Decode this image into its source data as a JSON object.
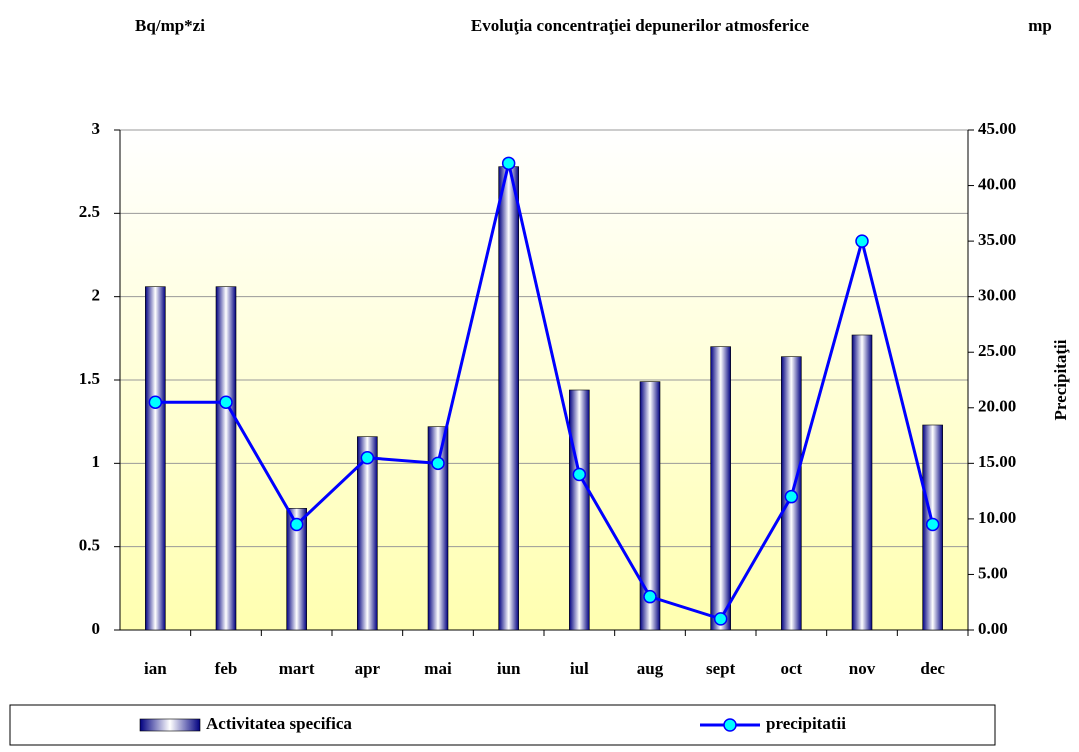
{
  "chart_data": {
    "type": "bar_line",
    "title": "Evoluţia concentraţiei depunerilor atmosferice",
    "ylabel": "Bq/mp*zi",
    "y2unit": "mp",
    "y2label": "Precipitaţii",
    "categories": [
      "ian",
      "feb",
      "mart",
      "apr",
      "mai",
      "iun",
      "iul",
      "aug",
      "sept",
      "oct",
      "nov",
      "dec"
    ],
    "series": [
      {
        "name": "Activitatea specifica",
        "type": "bar",
        "axis": "y",
        "color": "#000080",
        "values": [
          2.06,
          2.06,
          0.73,
          1.16,
          1.22,
          2.78,
          1.44,
          1.49,
          1.7,
          1.64,
          1.77,
          1.23
        ]
      },
      {
        "name": "precipitatii",
        "type": "line",
        "axis": "y2",
        "color": "#0000ff",
        "marker_color": "#00ffff",
        "values": [
          20.5,
          20.5,
          9.5,
          15.5,
          15,
          42,
          14,
          3,
          1,
          12,
          35,
          9.5
        ]
      }
    ],
    "ylim": [
      0,
      3
    ],
    "yticks": [
      0,
      0.5,
      1,
      1.5,
      2,
      2.5,
      3
    ],
    "y2lim": [
      0,
      45
    ],
    "y2ticks": [
      {
        "value": 0,
        "label": "0.00"
      },
      {
        "value": 5,
        "label": "5.00"
      },
      {
        "value": 10,
        "label": "10.00"
      },
      {
        "value": 15,
        "label": "15.00"
      },
      {
        "value": 20,
        "label": "20.00"
      },
      {
        "value": 25,
        "label": "25.00"
      },
      {
        "value": 30,
        "label": "30.00"
      },
      {
        "value": 35,
        "label": "35.00"
      },
      {
        "value": 40,
        "label": "40.00"
      },
      {
        "value": 45,
        "label": "45.00"
      }
    ],
    "grid": true,
    "legend": "bottom"
  }
}
